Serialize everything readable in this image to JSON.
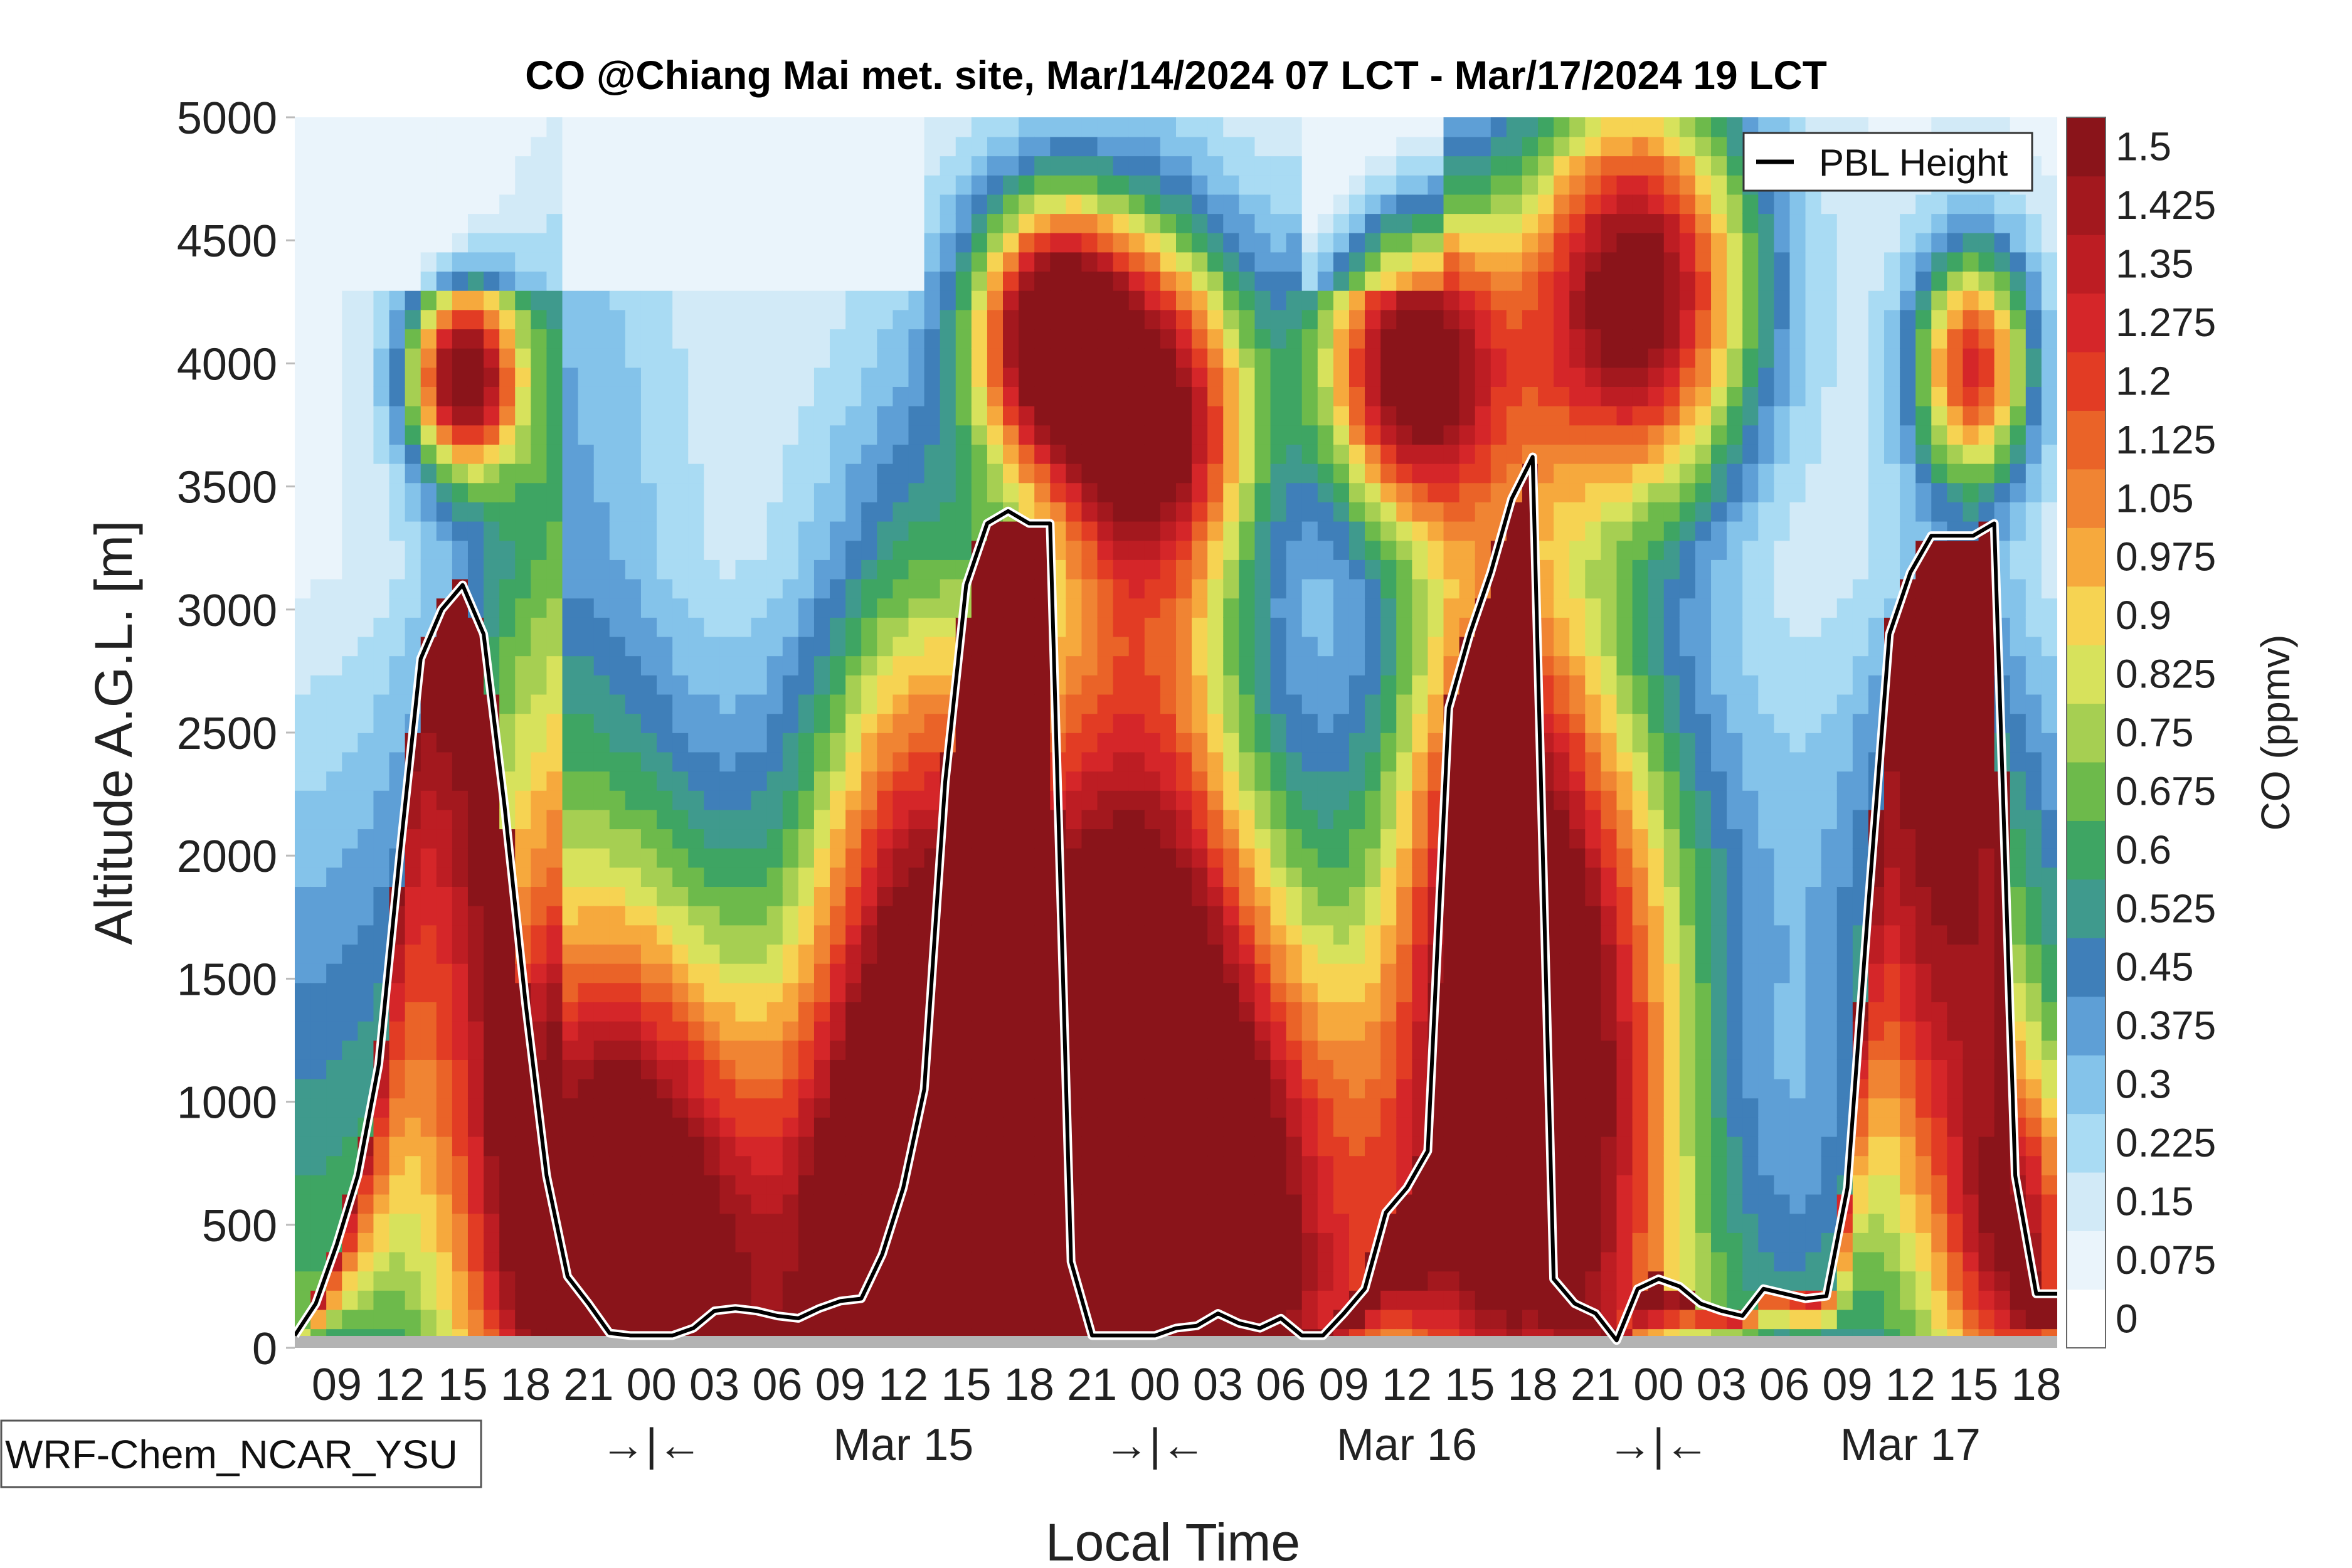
{
  "chart_data": {
    "type": "heatmap",
    "title": "CO @Chiang Mai met. site, Mar/14/2024 07 LCT - Mar/17/2024 19 LCT",
    "xlabel": "Local Time",
    "ylabel": "Altitude A.G.L. [m]",
    "ylim": [
      0,
      5000
    ],
    "y_ticks": [
      "0",
      "500",
      "1000",
      "1500",
      "2000",
      "2500",
      "3000",
      "3500",
      "4000",
      "4500",
      "5000"
    ],
    "x_hour_ticks": [
      "09",
      "12",
      "15",
      "18",
      "21",
      "00",
      "03",
      "06",
      "09",
      "12",
      "15",
      "18",
      "21",
      "00",
      "03",
      "06",
      "09",
      "12",
      "15",
      "18",
      "21",
      "00",
      "03",
      "06",
      "09",
      "12",
      "15",
      "18"
    ],
    "x_day_labels": [
      "→|←",
      "Mar 15",
      "→|←",
      "Mar 16",
      "→|←",
      "Mar 17"
    ],
    "colorbar": {
      "label": "CO (ppmv)",
      "ticks": [
        "0",
        "0.075",
        "0.15",
        "0.225",
        "0.3",
        "0.375",
        "0.45",
        "0.525",
        "0.6",
        "0.675",
        "0.75",
        "0.825",
        "0.9",
        "0.975",
        "1.05",
        "1.125",
        "1.2",
        "1.275",
        "1.35",
        "1.425",
        "1.5"
      ],
      "colors": [
        "#ffffff",
        "#eaf4fb",
        "#d2eaf7",
        "#a9dbf3",
        "#84c3ea",
        "#5e9fd6",
        "#3f7fb9",
        "#3f9a8d",
        "#3ea563",
        "#6dba4b",
        "#a6cf52",
        "#d7e25c",
        "#f6d352",
        "#f6a93d",
        "#f08433",
        "#ea6328",
        "#e23c24",
        "#d52629",
        "#bd1d23",
        "#a3181e",
        "#8a141a"
      ]
    },
    "legend": {
      "entries": [
        "PBL Height"
      ],
      "position": "top-right"
    },
    "pbl_height": {
      "name": "PBL Height",
      "hours_since_start": [
        0,
        1,
        2,
        3,
        4,
        5,
        6,
        7,
        8,
        9,
        10,
        11,
        12,
        13,
        14,
        15,
        16,
        17,
        18,
        19,
        20,
        21,
        22,
        23,
        24,
        25,
        26,
        27,
        28,
        29,
        30,
        31,
        32,
        33,
        34,
        35,
        36,
        37,
        38,
        39,
        40,
        41,
        42,
        43,
        44,
        45,
        46,
        47,
        48,
        49,
        50,
        51,
        52,
        53,
        54,
        55,
        56,
        57,
        58,
        59,
        60,
        61,
        62,
        63,
        64,
        65,
        66,
        67,
        68,
        69,
        70,
        71,
        72,
        73,
        74,
        75,
        76,
        77,
        78,
        79,
        80,
        81,
        82,
        83,
        84
      ],
      "values_m": [
        50,
        180,
        420,
        700,
        1150,
        2000,
        2800,
        3000,
        3100,
        2900,
        2200,
        1400,
        700,
        290,
        180,
        60,
        50,
        50,
        50,
        80,
        150,
        160,
        150,
        130,
        120,
        160,
        190,
        200,
        380,
        650,
        1050,
        2300,
        3100,
        3350,
        3400,
        3350,
        3350,
        350,
        50,
        50,
        50,
        50,
        80,
        90,
        140,
        100,
        80,
        120,
        50,
        50,
        140,
        240,
        550,
        650,
        800,
        2600,
        2900,
        3150,
        3450,
        3620,
        280,
        180,
        140,
        30,
        240,
        280,
        250,
        180,
        150,
        130,
        240,
        220,
        200,
        210,
        650,
        1800,
        2900,
        3150,
        3300,
        3300,
        3300,
        3350,
        700,
        220,
        220
      ],
      "unit": "m"
    },
    "model_label": "WRF-Chem_NCAR_YSU"
  }
}
